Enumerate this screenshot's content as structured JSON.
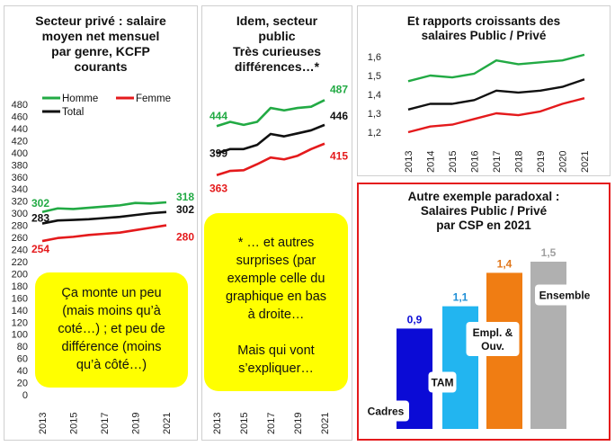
{
  "panels": {
    "private": {
      "title": "Secteur privé : salaire\nmoyen net mensuel\npar genre, KCFP\ncourants",
      "note": "Ça monte un peu\n(mais moins qu’à\ncoté…) ; et peu de\ndifférence (moins\nqu’à côté…)"
    },
    "public": {
      "title": "Idem, secteur\npublic\nTrès curieuses\ndifférences…*",
      "note": "* … et autres\nsurprises (par\nexemple celle du\ngraphique en bas\nà droite…\n\nMais qui vont\ns’expliquer…"
    },
    "ratios": {
      "title": "Et rapports croissants des\nsalaires Public / Privé"
    },
    "csp": {
      "title": "Autre exemple paradoxal :\nSalaires Public / Privé\npar CSP en 2021",
      "border_color": "#e41a1c"
    }
  },
  "chart_data": [
    {
      "id": "private",
      "type": "line",
      "x": [
        2013,
        2014,
        2015,
        2016,
        2017,
        2018,
        2019,
        2020,
        2021
      ],
      "x_tick_labels": [
        "2013",
        "2015",
        "2017",
        "2019",
        "2021"
      ],
      "ylim": [
        0,
        480
      ],
      "y_ticks": [
        0,
        20,
        40,
        60,
        80,
        100,
        120,
        140,
        160,
        180,
        200,
        220,
        240,
        260,
        280,
        300,
        320,
        340,
        360,
        380,
        400,
        420,
        440,
        460,
        480
      ],
      "legend": "top-left",
      "series": [
        {
          "name": "Homme",
          "color": "#22aa44",
          "values": [
            302,
            308,
            307,
            309,
            311,
            313,
            317,
            316,
            318
          ],
          "start_label": "302",
          "end_label": "318"
        },
        {
          "name": "Femme",
          "color": "#e41a1c",
          "values": [
            254,
            259,
            261,
            264,
            266,
            268,
            272,
            276,
            280
          ],
          "start_label": "254",
          "end_label": "280"
        },
        {
          "name": "Total",
          "color": "#111111",
          "values": [
            283,
            288,
            289,
            290,
            292,
            294,
            297,
            300,
            302
          ],
          "start_label": "283",
          "end_label": "302"
        }
      ]
    },
    {
      "id": "public",
      "type": "line",
      "x": [
        2013,
        2014,
        2015,
        2016,
        2017,
        2018,
        2019,
        2020,
        2021
      ],
      "x_tick_labels": [
        "2013",
        "2015",
        "2017",
        "2019",
        "2021"
      ],
      "ylim": [
        0,
        480
      ],
      "series": [
        {
          "name": "Homme",
          "color": "#22aa44",
          "values": [
            444,
            451,
            446,
            451,
            474,
            470,
            474,
            476,
            487
          ],
          "start_label": "444",
          "end_label": "487"
        },
        {
          "name": "Femme",
          "color": "#e41a1c",
          "values": [
            363,
            370,
            371,
            381,
            392,
            389,
            395,
            406,
            415
          ],
          "start_label": "363",
          "end_label": "415"
        },
        {
          "name": "Total",
          "color": "#111111",
          "values": [
            399,
            406,
            406,
            413,
            431,
            427,
            432,
            437,
            446
          ],
          "start_label": "399",
          "end_label": "446"
        }
      ]
    },
    {
      "id": "ratios",
      "type": "line",
      "x": [
        2013,
        2014,
        2015,
        2016,
        2017,
        2018,
        2019,
        2020,
        2021
      ],
      "x_tick_labels": [
        "2013",
        "2014",
        "2015",
        "2016",
        "2017",
        "2018",
        "2019",
        "2020",
        "2021"
      ],
      "ylim": [
        1.2,
        1.6
      ],
      "y_ticks": [
        1.2,
        1.3,
        1.4,
        1.5,
        1.6
      ],
      "y_tick_labels": [
        "1,2",
        "1,3",
        "1,4",
        "1,5",
        "1,6"
      ],
      "series": [
        {
          "color": "#22aa44",
          "values": [
            1.47,
            1.5,
            1.49,
            1.51,
            1.58,
            1.56,
            1.57,
            1.58,
            1.61
          ]
        },
        {
          "color": "#111111",
          "values": [
            1.32,
            1.35,
            1.35,
            1.37,
            1.42,
            1.41,
            1.42,
            1.44,
            1.48
          ]
        },
        {
          "color": "#e41a1c",
          "values": [
            1.2,
            1.23,
            1.24,
            1.27,
            1.3,
            1.29,
            1.31,
            1.35,
            1.38
          ]
        }
      ]
    },
    {
      "id": "csp",
      "type": "bar",
      "ylim": [
        0,
        1.5
      ],
      "bars": [
        {
          "category": "Cadres",
          "value": 0.9,
          "value_label": "0,9",
          "color": "#0b0bd6",
          "label_color": "#0b0bd6"
        },
        {
          "category": "TAM",
          "value": 1.1,
          "value_label": "1,1",
          "color": "#22b5f0",
          "label_color": "#1e8fd6"
        },
        {
          "category": "Empl. &\nOuv.",
          "value": 1.4,
          "value_label": "1,4",
          "color": "#f07d13",
          "label_color": "#e0761a"
        },
        {
          "category": "Ensemble",
          "value": 1.5,
          "value_label": "1,5",
          "color": "#b0b0b0",
          "label_color": "#a0a0a0"
        }
      ]
    }
  ]
}
